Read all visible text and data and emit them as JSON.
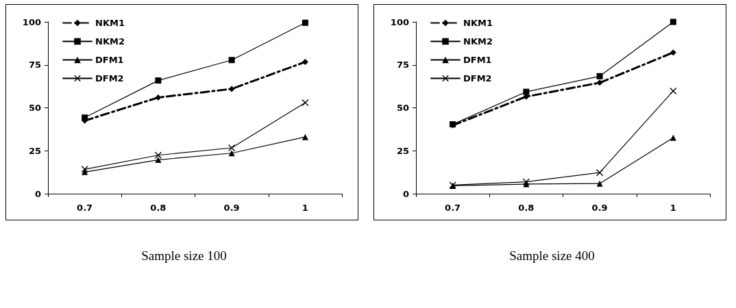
{
  "chart_data": [
    {
      "type": "line",
      "title": "Sample size 100",
      "categories": [
        "0.7",
        "0.8",
        "0.9",
        "1"
      ],
      "ylim": [
        0,
        100
      ],
      "yticks": [
        0,
        25,
        50,
        75,
        100
      ],
      "grid": false,
      "legend": "top left",
      "series": [
        {
          "name": "NKM1",
          "color": "#000000",
          "marker": "diamond",
          "line_style": "dashed",
          "values": [
            42.5,
            56,
            61,
            76.7
          ]
        },
        {
          "name": "NKM2",
          "color": "#000000",
          "marker": "square",
          "line_style": "solid",
          "values": [
            44.3,
            65.9,
            77.8,
            99.5
          ]
        },
        {
          "name": "DFM1",
          "color": "#000000",
          "marker": "triangle",
          "line_style": "solid",
          "values": [
            12.6,
            19.7,
            23.6,
            33
          ]
        },
        {
          "name": "DFM2",
          "color": "#000000",
          "marker": "cross",
          "line_style": "solid",
          "values": [
            14.2,
            22.4,
            26.7,
            53
          ]
        }
      ]
    },
    {
      "type": "line",
      "title": "Sample size 400",
      "categories": [
        "0.7",
        "0.8",
        "0.9",
        "1"
      ],
      "ylim": [
        0,
        100
      ],
      "yticks": [
        0,
        25,
        50,
        75,
        100
      ],
      "grid": false,
      "legend": "top left",
      "series": [
        {
          "name": "NKM1",
          "color": "#000000",
          "marker": "diamond",
          "line_style": "dashed",
          "values": [
            39.8,
            56.5,
            64.6,
            82.2
          ]
        },
        {
          "name": "NKM2",
          "color": "#000000",
          "marker": "square",
          "line_style": "solid",
          "values": [
            40.4,
            59.3,
            68.4,
            100
          ]
        },
        {
          "name": "DFM1",
          "color": "#000000",
          "marker": "triangle",
          "line_style": "solid",
          "values": [
            4.6,
            5.6,
            5.9,
            32.6
          ]
        },
        {
          "name": "DFM2",
          "color": "#000000",
          "marker": "cross",
          "line_style": "solid",
          "values": [
            5,
            6.9,
            12.3,
            59.8
          ]
        }
      ]
    }
  ]
}
